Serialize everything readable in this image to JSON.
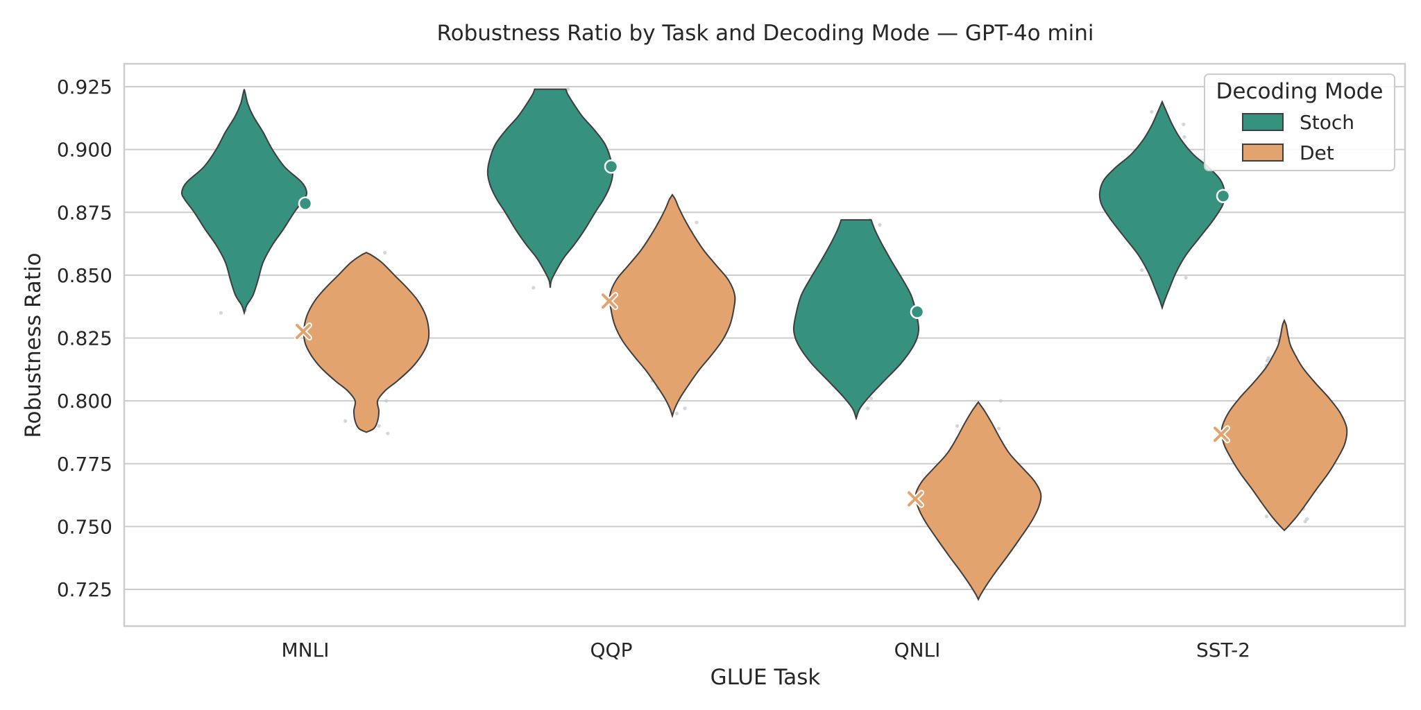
{
  "chart_data": {
    "type": "violin",
    "title": "Robustness Ratio by Task and Decoding Mode — GPT-4o mini",
    "xlabel": "GLUE Task",
    "ylabel": "Robustness Ratio",
    "categories": [
      "MNLI",
      "QQP",
      "QNLI",
      "SST-2"
    ],
    "ylim": [
      0.715,
      0.935
    ],
    "yticks": [
      0.725,
      0.75,
      0.775,
      0.8,
      0.825,
      0.85,
      0.875,
      0.9,
      0.925
    ],
    "ytick_labels": [
      "0.725",
      "0.750",
      "0.775",
      "0.800",
      "0.825",
      "0.850",
      "0.875",
      "0.900",
      "0.925"
    ],
    "grid": true,
    "legend": {
      "title": "Decoding Mode",
      "position": "top-right"
    },
    "series": [
      {
        "name": "Stoch",
        "color": "#36917f",
        "mean_marker": "circle",
        "means": [
          0.8785,
          0.8932,
          0.8354,
          0.8815
        ],
        "ranges": [
          [
            0.835,
            0.924
          ],
          [
            0.845,
            0.924
          ],
          [
            0.793,
            0.872
          ],
          [
            0.837,
            0.919
          ]
        ],
        "density_profiles": [
          [
            [
              0.835,
              0.0
            ],
            [
              0.838,
              0.04
            ],
            [
              0.842,
              0.14
            ],
            [
              0.848,
              0.22
            ],
            [
              0.855,
              0.3
            ],
            [
              0.862,
              0.45
            ],
            [
              0.868,
              0.62
            ],
            [
              0.875,
              0.8
            ],
            [
              0.88,
              0.95
            ],
            [
              0.883,
              1.0
            ],
            [
              0.887,
              0.92
            ],
            [
              0.893,
              0.65
            ],
            [
              0.9,
              0.45
            ],
            [
              0.907,
              0.3
            ],
            [
              0.913,
              0.15
            ],
            [
              0.918,
              0.06
            ],
            [
              0.922,
              0.02
            ],
            [
              0.924,
              0.0
            ]
          ],
          [
            [
              0.845,
              0.0
            ],
            [
              0.848,
              0.02
            ],
            [
              0.852,
              0.1
            ],
            [
              0.857,
              0.22
            ],
            [
              0.862,
              0.38
            ],
            [
              0.868,
              0.55
            ],
            [
              0.875,
              0.72
            ],
            [
              0.88,
              0.85
            ],
            [
              0.885,
              0.95
            ],
            [
              0.89,
              1.0
            ],
            [
              0.895,
              0.98
            ],
            [
              0.902,
              0.88
            ],
            [
              0.908,
              0.7
            ],
            [
              0.913,
              0.52
            ],
            [
              0.918,
              0.38
            ],
            [
              0.922,
              0.28
            ],
            [
              0.924,
              0.25
            ]
          ],
          [
            [
              0.793,
              0.0
            ],
            [
              0.797,
              0.06
            ],
            [
              0.802,
              0.22
            ],
            [
              0.808,
              0.45
            ],
            [
              0.815,
              0.72
            ],
            [
              0.822,
              0.92
            ],
            [
              0.828,
              1.0
            ],
            [
              0.835,
              0.96
            ],
            [
              0.842,
              0.88
            ],
            [
              0.848,
              0.75
            ],
            [
              0.855,
              0.58
            ],
            [
              0.862,
              0.42
            ],
            [
              0.868,
              0.3
            ],
            [
              0.872,
              0.24
            ]
          ],
          [
            [
              0.837,
              0.0
            ],
            [
              0.84,
              0.04
            ],
            [
              0.845,
              0.12
            ],
            [
              0.851,
              0.22
            ],
            [
              0.858,
              0.38
            ],
            [
              0.865,
              0.6
            ],
            [
              0.872,
              0.82
            ],
            [
              0.878,
              0.97
            ],
            [
              0.883,
              1.0
            ],
            [
              0.888,
              0.93
            ],
            [
              0.893,
              0.74
            ],
            [
              0.898,
              0.5
            ],
            [
              0.904,
              0.3
            ],
            [
              0.91,
              0.16
            ],
            [
              0.915,
              0.07
            ],
            [
              0.919,
              0.0
            ]
          ]
        ],
        "raw_points": [
          [
            0.905,
            0.906,
            0.908,
            0.916,
            0.902,
            0.857,
            0.852,
            0.849,
            0.848,
            0.836,
            0.835,
            0.852,
            0.848
          ],
          [
            0.924,
            0.919,
            0.916,
            0.915,
            0.912,
            0.865,
            0.863,
            0.845,
            0.901,
            0.899,
            0.893,
            0.874,
            0.888
          ],
          [
            0.872,
            0.868,
            0.866,
            0.81,
            0.808,
            0.801,
            0.797,
            0.805,
            0.869,
            0.87,
            0.864,
            0.82,
            0.812
          ],
          [
            0.912,
            0.915,
            0.91,
            0.905,
            0.863,
            0.858,
            0.852,
            0.849,
            0.844,
            0.843,
            0.892,
            0.9,
            0.861
          ]
        ]
      },
      {
        "name": "Det",
        "color": "#e2a36f",
        "mean_marker": "x",
        "means": [
          0.8276,
          0.8397,
          0.761,
          0.7867
        ],
        "ranges": [
          [
            0.7875,
            0.859
          ],
          [
            0.794,
            0.882
          ],
          [
            0.721,
            0.7995
          ],
          [
            0.7485,
            0.832
          ]
        ],
        "density_profiles": [
          [
            [
              0.7875,
              0.0
            ],
            [
              0.789,
              0.12
            ],
            [
              0.792,
              0.18
            ],
            [
              0.796,
              0.2
            ],
            [
              0.8,
              0.18
            ],
            [
              0.804,
              0.3
            ],
            [
              0.808,
              0.5
            ],
            [
              0.813,
              0.72
            ],
            [
              0.818,
              0.88
            ],
            [
              0.823,
              0.98
            ],
            [
              0.828,
              1.0
            ],
            [
              0.834,
              0.95
            ],
            [
              0.84,
              0.82
            ],
            [
              0.845,
              0.65
            ],
            [
              0.85,
              0.45
            ],
            [
              0.855,
              0.25
            ],
            [
              0.858,
              0.08
            ],
            [
              0.859,
              0.0
            ]
          ],
          [
            [
              0.794,
              0.0
            ],
            [
              0.797,
              0.04
            ],
            [
              0.801,
              0.12
            ],
            [
              0.806,
              0.25
            ],
            [
              0.812,
              0.42
            ],
            [
              0.818,
              0.62
            ],
            [
              0.824,
              0.8
            ],
            [
              0.83,
              0.92
            ],
            [
              0.836,
              0.98
            ],
            [
              0.842,
              1.0
            ],
            [
              0.848,
              0.9
            ],
            [
              0.854,
              0.7
            ],
            [
              0.86,
              0.5
            ],
            [
              0.866,
              0.34
            ],
            [
              0.872,
              0.2
            ],
            [
              0.877,
              0.1
            ],
            [
              0.88,
              0.05
            ],
            [
              0.882,
              0.0
            ]
          ],
          [
            [
              0.721,
              0.0
            ],
            [
              0.723,
              0.04
            ],
            [
              0.727,
              0.14
            ],
            [
              0.732,
              0.28
            ],
            [
              0.738,
              0.46
            ],
            [
              0.745,
              0.66
            ],
            [
              0.752,
              0.85
            ],
            [
              0.758,
              0.97
            ],
            [
              0.763,
              1.0
            ],
            [
              0.768,
              0.9
            ],
            [
              0.773,
              0.72
            ],
            [
              0.779,
              0.5
            ],
            [
              0.785,
              0.35
            ],
            [
              0.791,
              0.22
            ],
            [
              0.796,
              0.1
            ],
            [
              0.7995,
              0.0
            ]
          ],
          [
            [
              0.7485,
              0.0
            ],
            [
              0.75,
              0.06
            ],
            [
              0.754,
              0.2
            ],
            [
              0.759,
              0.35
            ],
            [
              0.765,
              0.52
            ],
            [
              0.771,
              0.7
            ],
            [
              0.777,
              0.85
            ],
            [
              0.783,
              0.97
            ],
            [
              0.789,
              1.0
            ],
            [
              0.795,
              0.9
            ],
            [
              0.801,
              0.72
            ],
            [
              0.807,
              0.5
            ],
            [
              0.813,
              0.3
            ],
            [
              0.818,
              0.18
            ],
            [
              0.822,
              0.1
            ],
            [
              0.826,
              0.06
            ],
            [
              0.83,
              0.03
            ],
            [
              0.832,
              0.0
            ]
          ]
        ],
        "raw_points": [
          [
            0.855,
            0.85,
            0.852,
            0.859,
            0.845,
            0.8,
            0.795,
            0.79,
            0.792,
            0.794,
            0.787,
            0.803,
            0.849
          ],
          [
            0.872,
            0.868,
            0.871,
            0.873,
            0.87,
            0.81,
            0.797,
            0.795,
            0.811,
            0.805,
            0.808,
            0.863,
            0.867
          ],
          [
            0.792,
            0.79,
            0.783,
            0.8,
            0.785,
            0.736,
            0.734,
            0.729,
            0.737,
            0.735,
            0.738,
            0.789,
            0.787
          ],
          [
            0.83,
            0.824,
            0.816,
            0.81,
            0.813,
            0.76,
            0.757,
            0.752,
            0.754,
            0.753,
            0.758,
            0.814,
            0.817
          ]
        ]
      }
    ]
  }
}
